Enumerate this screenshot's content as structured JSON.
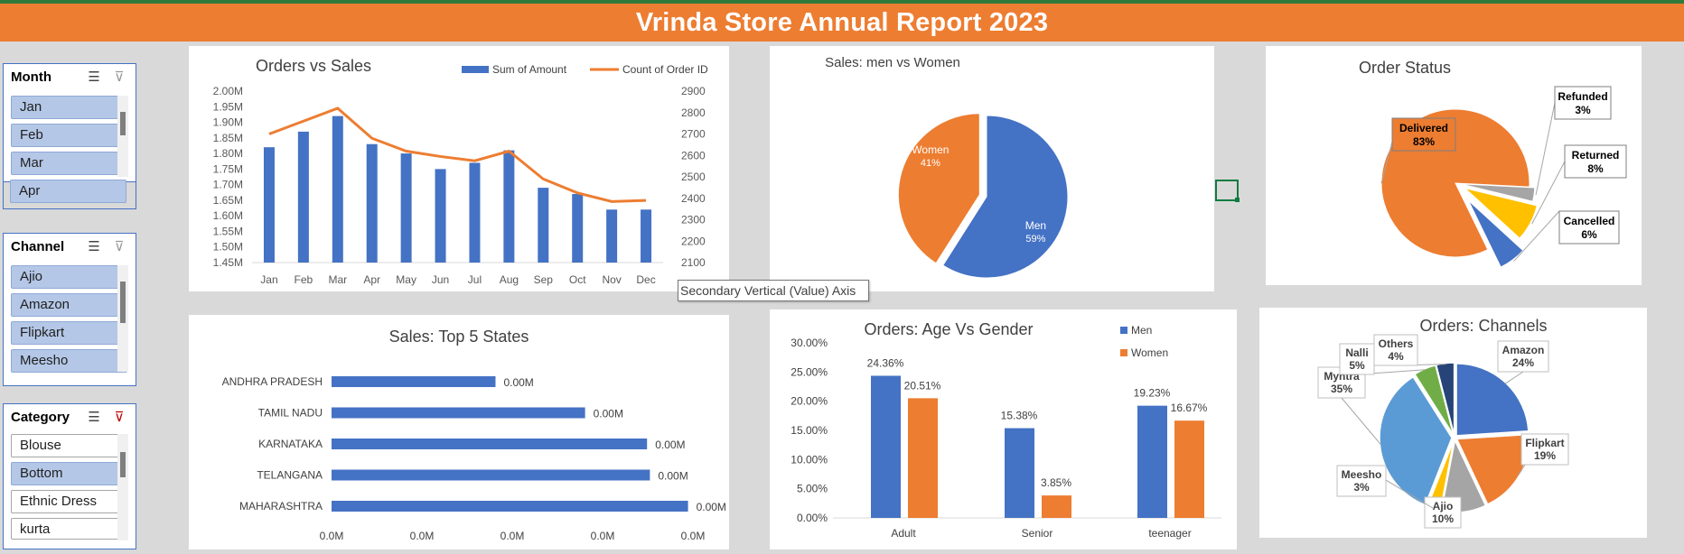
{
  "report": {
    "title": "Vrinda Store Annual Report 2023",
    "tooltip": "Secondary Vertical (Value) Axis"
  },
  "slicers": {
    "month": {
      "header": "Month",
      "items": [
        "Jan",
        "Feb",
        "Mar",
        "Apr"
      ]
    },
    "channel": {
      "header": "Channel",
      "items": [
        "Ajio",
        "Amazon",
        "Flipkart",
        "Meesho"
      ]
    },
    "category": {
      "header": "Category",
      "items": [
        "Blouse",
        "Bottom",
        "Ethnic Dress",
        "kurta"
      ]
    }
  },
  "colors": {
    "banner": "#ed7d31",
    "blue": "#4472c4",
    "orange": "#ed7d31",
    "gray": "#a5a5a5",
    "yellow": "#ffc000",
    "lightblue": "#5b9bd5",
    "green": "#70ad47",
    "navy": "#264478"
  },
  "chart_data": [
    {
      "type": "bar",
      "title": "Orders vs Sales",
      "categories": [
        "Jan",
        "Feb",
        "Mar",
        "Apr",
        "May",
        "Jun",
        "Jul",
        "Aug",
        "Sep",
        "Oct",
        "Nov",
        "Dec"
      ],
      "series": [
        {
          "name": "Sum of Amount",
          "axis": "primary",
          "type": "bar",
          "values": [
            1.82,
            1.87,
            1.92,
            1.83,
            1.8,
            1.75,
            1.77,
            1.81,
            1.69,
            1.67,
            1.62,
            1.62
          ]
        },
        {
          "name": "Count of Order ID",
          "axis": "secondary",
          "type": "line",
          "values": [
            2700,
            2760,
            2820,
            2680,
            2620,
            2595,
            2575,
            2620,
            2490,
            2425,
            2385,
            2390
          ]
        }
      ],
      "yticks": [
        "1.45M",
        "1.50M",
        "1.55M",
        "1.60M",
        "1.65M",
        "1.70M",
        "1.75M",
        "1.80M",
        "1.85M",
        "1.90M",
        "1.95M",
        "2.00M"
      ],
      "y2ticks": [
        "2100",
        "2200",
        "2300",
        "2400",
        "2500",
        "2600",
        "2700",
        "2800",
        "2900"
      ],
      "ylim": [
        1.45,
        2.0
      ],
      "y2lim": [
        2100,
        2900
      ],
      "legend": "top-right"
    },
    {
      "type": "pie",
      "title": "Sales: men vs Women",
      "slices": [
        {
          "label": "Men",
          "pct": "59%",
          "value": 59
        },
        {
          "label": "Women",
          "pct": "41%",
          "value": 41
        }
      ]
    },
    {
      "type": "pie",
      "title": "Order Status",
      "slices": [
        {
          "label": "Delivered",
          "pct": "83%",
          "value": 83
        },
        {
          "label": "Refunded",
          "pct": "3%",
          "value": 3
        },
        {
          "label": "Returned",
          "pct": "8%",
          "value": 8
        },
        {
          "label": "Cancelled",
          "pct": "6%",
          "value": 6
        }
      ]
    },
    {
      "type": "bar",
      "title": "Sales: Top 5 States",
      "orientation": "horizontal",
      "categories": [
        "ANDHRA PRADESH",
        "TAMIL NADU",
        "KARNATAKA",
        "TELANGANA",
        "MAHARASHTRA"
      ],
      "values": [
        1.72,
        2.66,
        3.31,
        3.34,
        3.74
      ],
      "data_labels": [
        "0.00M",
        "0.00M",
        "0.00M",
        "0.00M",
        "0.00M"
      ],
      "xticks": [
        "0.0M",
        "0.0M",
        "0.0M",
        "0.0M",
        "0.0M"
      ]
    },
    {
      "type": "bar",
      "title": "Orders: Age Vs Gender",
      "categories": [
        "Adult",
        "Senior",
        "teenager"
      ],
      "series": [
        {
          "name": "Men",
          "values": [
            24.36,
            15.38,
            19.23
          ],
          "labels": [
            "24.36%",
            "15.38%",
            "19.23%"
          ]
        },
        {
          "name": "Women",
          "values": [
            20.51,
            3.85,
            16.67
          ],
          "labels": [
            "20.51%",
            "3.85%",
            "16.67%"
          ]
        }
      ],
      "yticks": [
        "0.00%",
        "5.00%",
        "10.00%",
        "15.00%",
        "20.00%",
        "25.00%",
        "30.00%"
      ],
      "ylim": [
        0,
        30
      ],
      "legend": "top-right"
    },
    {
      "type": "pie",
      "title": "Orders: Channels",
      "slices": [
        {
          "label": "Amazon",
          "pct": "24%",
          "value": 24
        },
        {
          "label": "Flipkart",
          "pct": "19%",
          "value": 19
        },
        {
          "label": "Ajio",
          "pct": "10%",
          "value": 10
        },
        {
          "label": "Meesho",
          "pct": "3%",
          "value": 3
        },
        {
          "label": "Myntra",
          "pct": "35%",
          "value": 35
        },
        {
          "label": "Nalli",
          "pct": "5%",
          "value": 5
        },
        {
          "label": "Others",
          "pct": "4%",
          "value": 4
        }
      ]
    }
  ]
}
